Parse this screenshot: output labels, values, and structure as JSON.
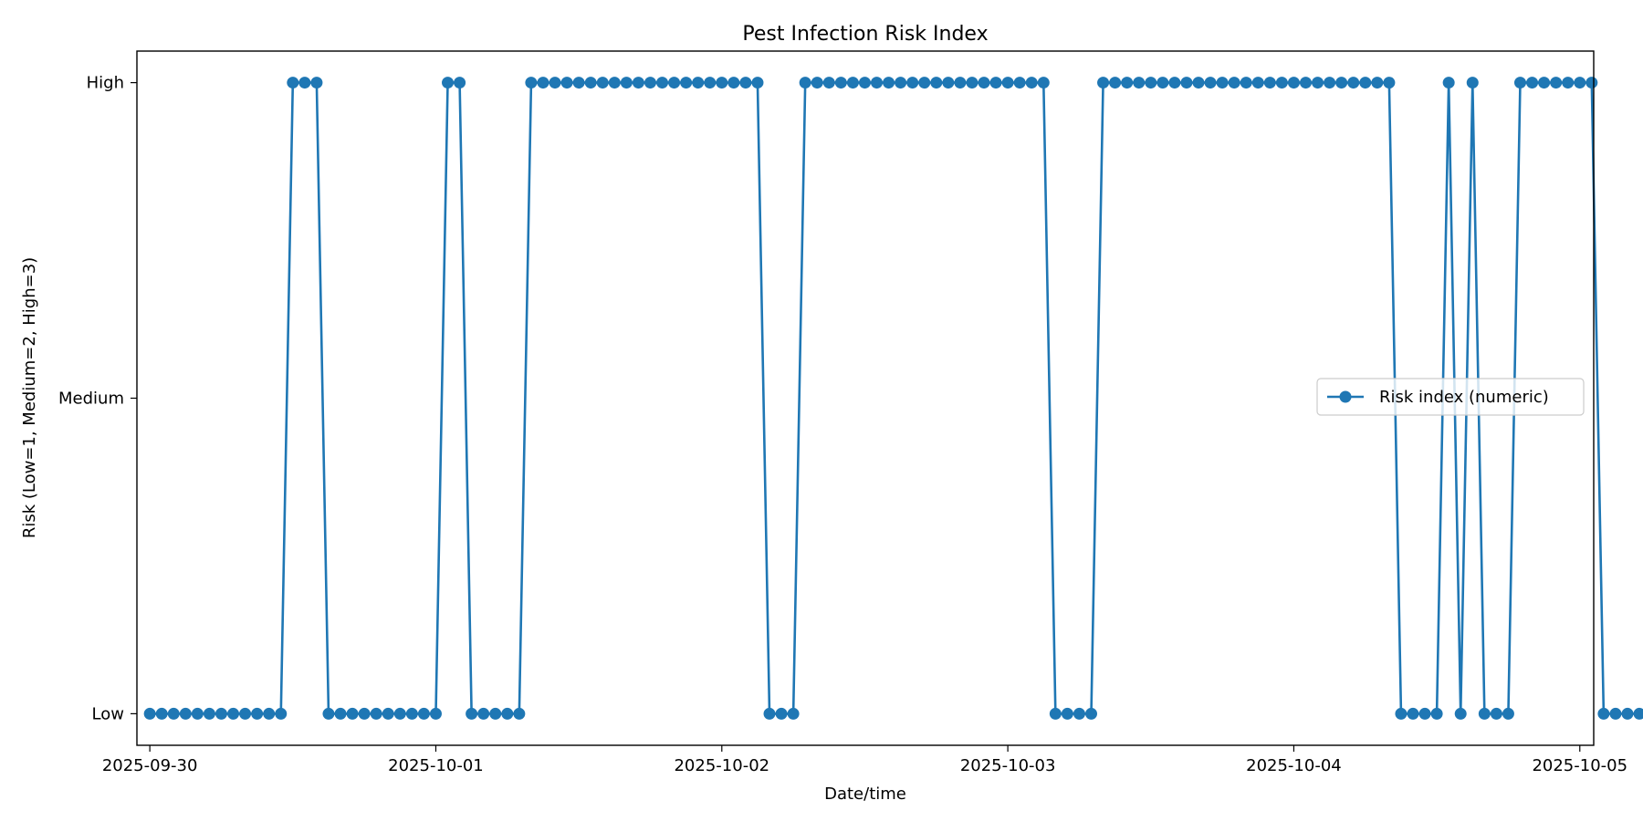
{
  "chart_data": {
    "type": "line",
    "title": "Pest Infection Risk Index",
    "xlabel": "Date/time",
    "ylabel": "Risk (Low=1, Medium=2, High=3)",
    "x_tick_labels": [
      "2025-09-30",
      "2025-10-01",
      "2025-10-02",
      "2025-10-03",
      "2025-10-04",
      "2025-10-05"
    ],
    "y_ticks": [
      {
        "value": 1,
        "label": "Low"
      },
      {
        "value": 2,
        "label": "Medium"
      },
      {
        "value": 3,
        "label": "High"
      }
    ],
    "xlim": [
      "2025-09-29T22:55",
      "2025-10-05T01:10"
    ],
    "ylim": [
      0.9,
      3.1
    ],
    "grid": false,
    "legend_position": "center-right",
    "series": [
      {
        "name": "Risk index (numeric)",
        "color": "#1f77b4",
        "marker": "circle",
        "x_start": "2025-09-30T00:00",
        "interval_minutes": 60,
        "values": [
          1,
          1,
          1,
          1,
          1,
          1,
          1,
          1,
          1,
          1,
          1,
          1,
          3,
          3,
          3,
          1,
          1,
          1,
          1,
          1,
          1,
          1,
          1,
          1,
          1,
          3,
          3,
          1,
          1,
          1,
          1,
          1,
          3,
          3,
          3,
          3,
          3,
          3,
          3,
          3,
          3,
          3,
          3,
          3,
          3,
          3,
          3,
          3,
          3,
          3,
          3,
          3,
          1,
          1,
          1,
          3,
          3,
          3,
          3,
          3,
          3,
          3,
          3,
          3,
          3,
          3,
          3,
          3,
          3,
          3,
          3,
          3,
          3,
          3,
          3,
          3,
          1,
          1,
          1,
          1,
          3,
          3,
          3,
          3,
          3,
          3,
          3,
          3,
          3,
          3,
          3,
          3,
          3,
          3,
          3,
          3,
          3,
          3,
          3,
          3,
          3,
          3,
          3,
          3,
          3,
          1,
          1,
          1,
          1,
          3,
          1,
          3,
          1,
          1,
          1,
          3,
          3,
          3,
          3,
          3,
          3,
          3,
          1,
          1,
          1,
          1
        ]
      }
    ]
  }
}
